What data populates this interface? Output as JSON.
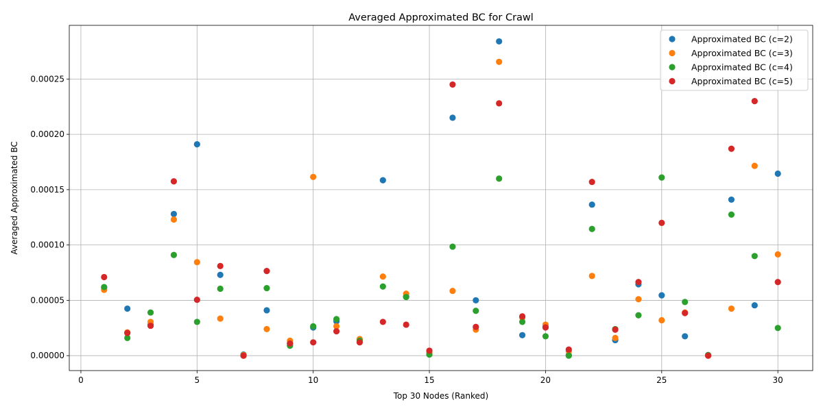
{
  "chart_data": {
    "type": "scatter",
    "title": "Averaged Approximated BC for Crawl",
    "xlabel": "Top 30 Nodes (Ranked)",
    "ylabel": "Averaged Approximated BC",
    "xlim": [
      -0.5,
      31.5
    ],
    "ylim": [
      -1.35e-05,
      0.0002985
    ],
    "xticks": [
      0,
      5,
      10,
      15,
      20,
      25,
      30
    ],
    "xtick_labels": [
      "0",
      "5",
      "10",
      "15",
      "20",
      "25",
      "30"
    ],
    "yticks": [
      0,
      5e-05,
      0.0001,
      0.00015,
      0.0002,
      0.00025
    ],
    "ytick_labels": [
      "0.00000",
      "0.00005",
      "0.00010",
      "0.00015",
      "0.00020",
      "0.00025"
    ],
    "grid": true,
    "legend_position": "top-right",
    "x": [
      1,
      2,
      3,
      4,
      5,
      6,
      7,
      8,
      9,
      10,
      11,
      12,
      13,
      14,
      15,
      16,
      17,
      18,
      19,
      20,
      21,
      22,
      23,
      24,
      25,
      26,
      27,
      28,
      29,
      30
    ],
    "series": [
      {
        "name": "Approximated BC (c=2)",
        "color": "#1f77b4",
        "values": [
          6.15e-05,
          4.25e-05,
          2.8e-05,
          0.000128,
          0.000191,
          7.3e-05,
          1e-06,
          4.1e-05,
          1.1e-05,
          2.55e-05,
          3.1e-05,
          1.45e-05,
          0.0001585,
          5.35e-05,
          3e-06,
          0.000215,
          5e-05,
          0.000284,
          1.85e-05,
          2.6e-05,
          5e-07,
          0.0001365,
          1.4e-05,
          6.45e-05,
          5.45e-05,
          1.75e-05,
          5e-07,
          0.000141,
          4.55e-05,
          0.0001645
        ]
      },
      {
        "name": "Approximated BC (c=3)",
        "color": "#ff7f0e",
        "values": [
          5.95e-05,
          2.1e-05,
          3.05e-05,
          0.000123,
          8.45e-05,
          3.35e-05,
          5e-07,
          2.4e-05,
          1.35e-05,
          0.0001615,
          2.65e-05,
          1.5e-05,
          7.15e-05,
          5.6e-05,
          3e-06,
          5.85e-05,
          2.35e-05,
          0.0002655,
          3.45e-05,
          2.8e-05,
          4e-06,
          7.2e-05,
          1.6e-05,
          5.1e-05,
          3.2e-05,
          3.9e-05,
          0.0,
          4.25e-05,
          0.0001715,
          9.15e-05
        ]
      },
      {
        "name": "Approximated BC (c=4)",
        "color": "#2ca02c",
        "values": [
          6.2e-05,
          1.6e-05,
          3.9e-05,
          9.1e-05,
          3.05e-05,
          6.05e-05,
          0.0,
          6.1e-05,
          9e-06,
          2.65e-05,
          3.3e-05,
          1.35e-05,
          6.25e-05,
          5.3e-05,
          1e-06,
          9.85e-05,
          4.05e-05,
          0.00016,
          3.05e-05,
          1.75e-05,
          0.0,
          0.0001145,
          2.4e-05,
          3.65e-05,
          0.000161,
          4.85e-05,
          5e-07,
          0.0001275,
          9e-05,
          2.5e-05
        ]
      },
      {
        "name": "Approximated BC (c=5)",
        "color": "#d62728",
        "values": [
          7.1e-05,
          2.05e-05,
          2.7e-05,
          0.0001575,
          5.05e-05,
          8.1e-05,
          0.0,
          7.65e-05,
          1.1e-05,
          1.2e-05,
          2.2e-05,
          1.2e-05,
          3.05e-05,
          2.8e-05,
          4.5e-06,
          0.000245,
          2.6e-05,
          0.000228,
          3.55e-05,
          2.55e-05,
          5.5e-06,
          0.000157,
          2.35e-05,
          6.65e-05,
          0.00012,
          3.85e-05,
          0.0,
          0.000187,
          0.00023,
          6.65e-05
        ]
      }
    ]
  }
}
